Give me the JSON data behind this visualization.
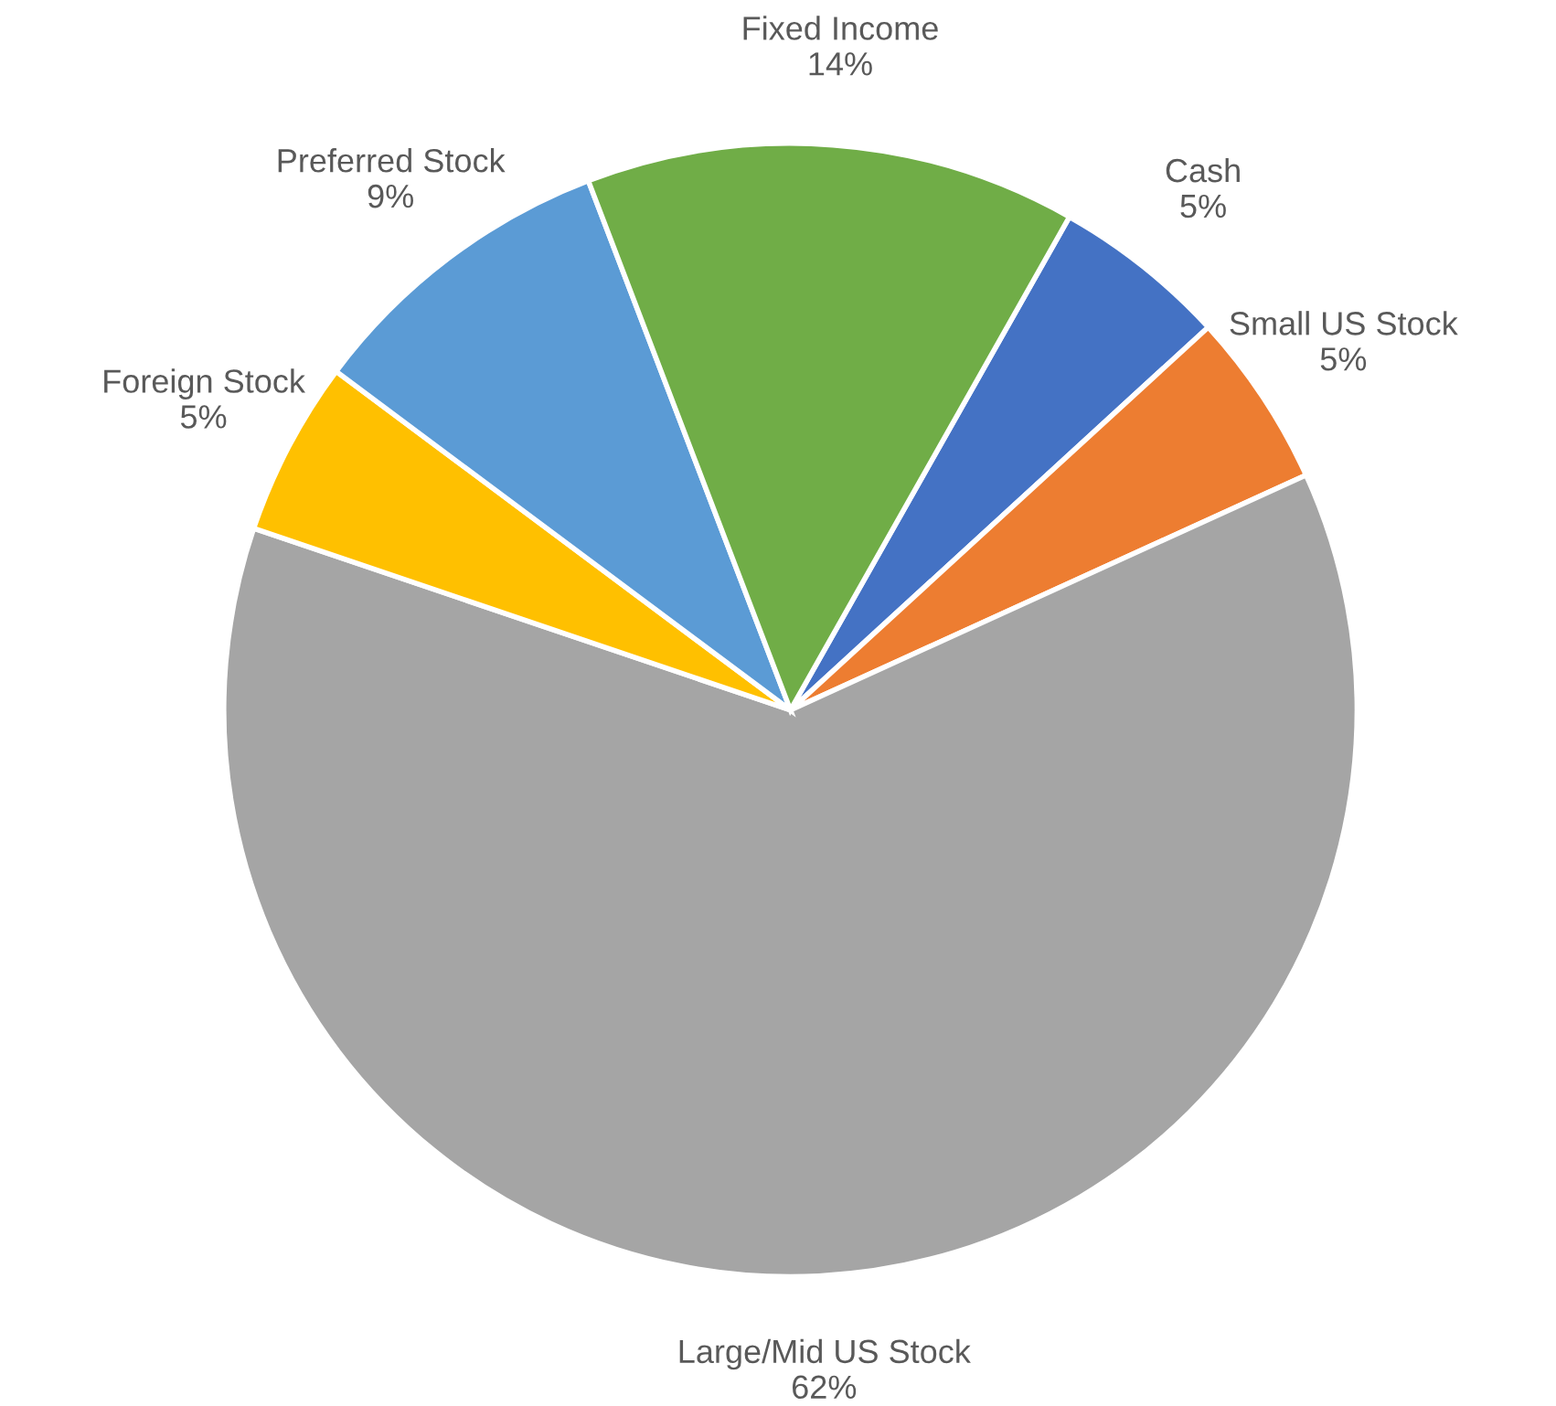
{
  "chart_data": {
    "type": "pie",
    "categories": [
      "Cash",
      "Small US Stock",
      "Large/Mid US Stock",
      "Foreign Stock",
      "Preferred Stock",
      "Fixed Income"
    ],
    "values": [
      5,
      5,
      62,
      5,
      9,
      14
    ],
    "value_labels": [
      "5%",
      "5%",
      "62%",
      "5%",
      "9%",
      "14%"
    ],
    "colors": [
      "#4472c4",
      "#ed7d31",
      "#a5a5a5",
      "#ffc000",
      "#5b9bd5",
      "#70ad47"
    ]
  }
}
